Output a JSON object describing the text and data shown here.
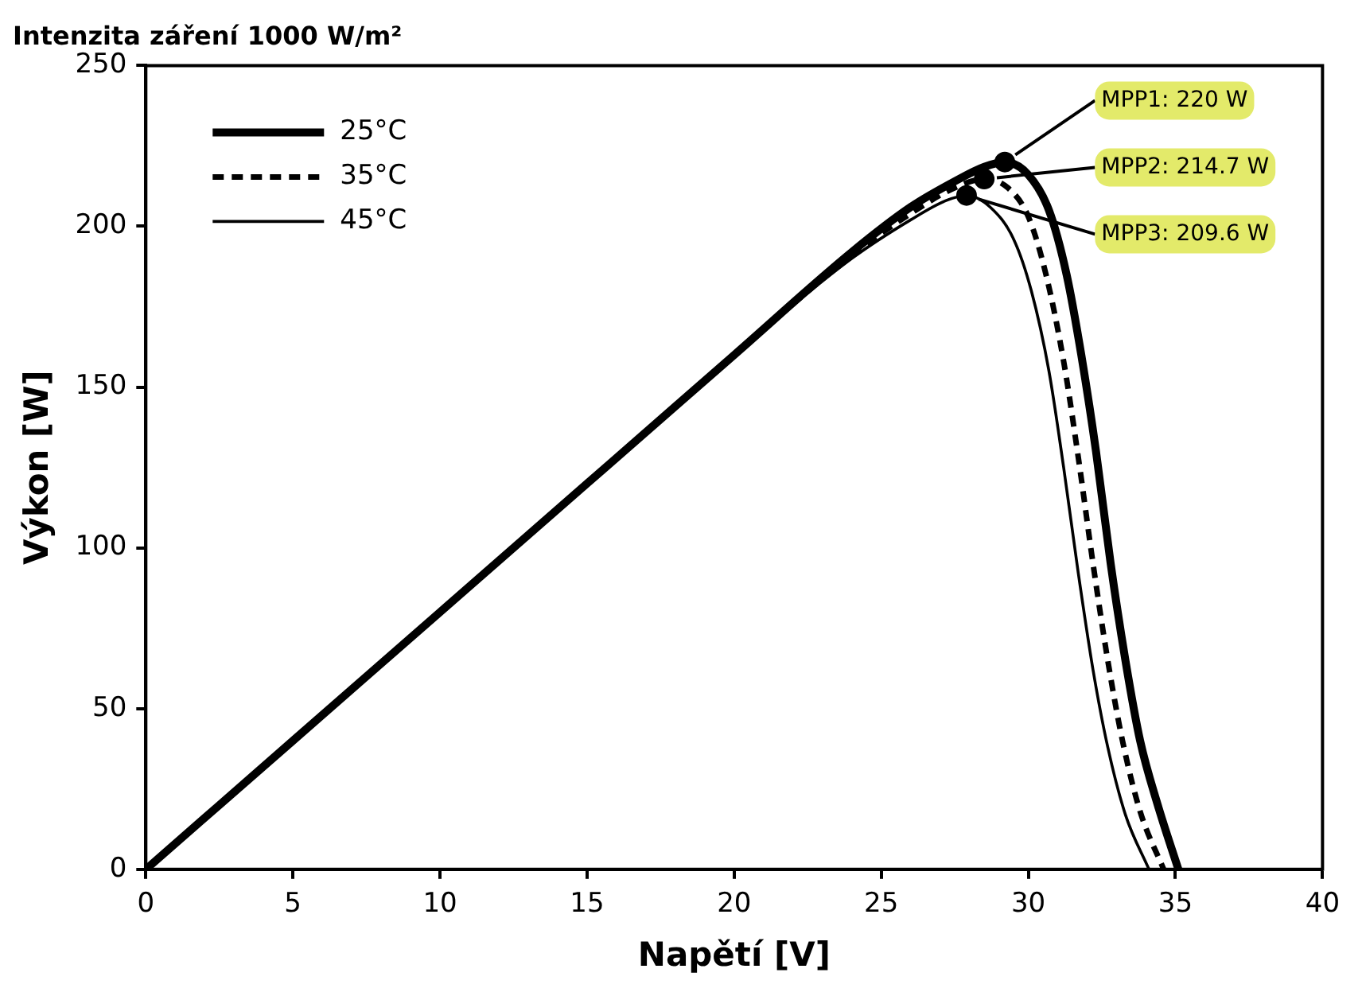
{
  "chart_data": {
    "type": "line",
    "title": "Intenzita záření 1000 W/m²",
    "xlabel": "Napětí [V]",
    "ylabel": "Výkon [W]",
    "xlim": [
      0,
      40
    ],
    "xticks": [
      0,
      5,
      10,
      15,
      20,
      25,
      30,
      35,
      40
    ],
    "ylim": [
      0,
      250
    ],
    "yticks": [
      0,
      50,
      100,
      150,
      200,
      250
    ],
    "grid": false,
    "legend": "top left",
    "marker": "none",
    "series": [
      {
        "name": "25°C",
        "color": "#000000",
        "line_style": "solid",
        "x": [
          0,
          5,
          10,
          15,
          20,
          24,
          26,
          27.5,
          28.5,
          29.2,
          30,
          30.7,
          31.3,
          31.8,
          32.3,
          32.8,
          33.3,
          33.8,
          34.4,
          35.1
        ],
        "values": [
          0,
          40,
          80,
          120,
          160,
          192,
          206,
          214,
          218.5,
          220,
          216,
          205,
          185,
          160,
          130,
          95,
          65,
          40,
          20,
          0
        ]
      },
      {
        "name": "35°C",
        "color": "#000000",
        "line_style": "dashed",
        "x": [
          0,
          5,
          10,
          15,
          20,
          24,
          26,
          27.5,
          28.5,
          29.3,
          30,
          30.6,
          31.2,
          31.7,
          32.2,
          32.7,
          33.2,
          33.8,
          34.6
        ],
        "values": [
          0,
          40,
          80,
          120,
          160,
          191,
          204,
          212,
          214.7,
          212,
          203,
          185,
          158,
          128,
          95,
          65,
          40,
          18,
          0
        ]
      },
      {
        "name": "45°C",
        "color": "#000000",
        "line_style": "solid",
        "x": [
          0,
          5,
          10,
          15,
          20,
          24,
          26,
          27.2,
          27.9,
          28.7,
          29.5,
          30.1,
          30.7,
          31.2,
          31.7,
          32.2,
          32.7,
          33.3,
          34.1
        ],
        "values": [
          0,
          40,
          80,
          120,
          160,
          190,
          202,
          208,
          209.6,
          206,
          196,
          180,
          155,
          125,
          92,
          62,
          38,
          17,
          0
        ]
      },
      {
        "type": "scatter",
        "marker": "circle",
        "color": "#000000",
        "x": [
          29.2,
          28.5,
          27.9
        ],
        "values": [
          220,
          214.7,
          209.6
        ]
      }
    ],
    "annotations": [
      {
        "text": "MPP1: 220 W",
        "x": 29.2,
        "y": 220
      },
      {
        "text": "MPP2: 214.7 W",
        "x": 28.5,
        "y": 214.7
      },
      {
        "text": "MPP3: 209.6 W",
        "x": 27.9,
        "y": 209.6
      }
    ]
  }
}
